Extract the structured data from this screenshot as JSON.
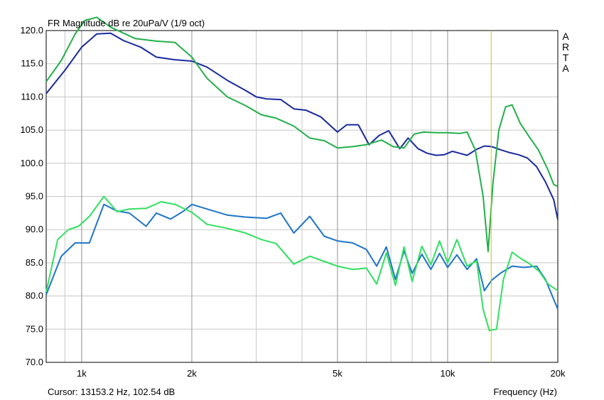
{
  "chart_data": {
    "type": "line",
    "title": "FR Magnitude dB re 20uPa/V (1/9 oct)",
    "watermark": "ARTA",
    "xlabel": "Frequency (Hz)",
    "cursor_text": "Cursor: 13153.2 Hz, 102.54 dB",
    "x_scale": "log",
    "xlim": [
      800,
      20000
    ],
    "ylim": [
      70,
      120
    ],
    "x_ticks": [
      {
        "value": 1000,
        "label": "1k"
      },
      {
        "value": 2000,
        "label": "2k"
      },
      {
        "value": 5000,
        "label": "5k"
      },
      {
        "value": 10000,
        "label": "10k"
      },
      {
        "value": 20000,
        "label": "20k"
      }
    ],
    "y_ticks": [
      {
        "value": 70,
        "label": "70.0"
      },
      {
        "value": 75,
        "label": "75.0"
      },
      {
        "value": 80,
        "label": "80.0"
      },
      {
        "value": 85,
        "label": "85.0"
      },
      {
        "value": 90,
        "label": "90.0"
      },
      {
        "value": 95,
        "label": "95.0"
      },
      {
        "value": 100,
        "label": "100.0"
      },
      {
        "value": 105,
        "label": "105.0"
      },
      {
        "value": 110,
        "label": "110.0"
      },
      {
        "value": 115,
        "label": "115.0"
      },
      {
        "value": 120,
        "label": "120.0"
      }
    ],
    "cursor_x": 13153.2,
    "grid": true,
    "colors": {
      "series_1": "#1a2a9c",
      "series_2": "#22b04a",
      "series_3": "#1f74c8",
      "series_4": "#30e060",
      "cursor": "#d4c400",
      "grid": "#c8c8c8"
    },
    "series": [
      {
        "color": "#1a2a9c",
        "x": [
          800,
          900,
          1000,
          1100,
          1200,
          1300,
          1450,
          1600,
          1800,
          2000,
          2200,
          2500,
          2800,
          3000,
          3200,
          3500,
          3800,
          4100,
          4500,
          5000,
          5300,
          5700,
          6100,
          6500,
          6900,
          7400,
          7800,
          8300,
          8800,
          9300,
          9800,
          10300,
          10800,
          11300,
          12000,
          12600,
          13200,
          14000,
          14800,
          15600,
          16500,
          17500,
          18500,
          19500,
          20000
        ],
        "y": [
          110.5,
          114,
          117.5,
          119.5,
          119.6,
          118.5,
          117.5,
          116,
          115.6,
          115.4,
          114.5,
          112.5,
          111,
          110,
          109.7,
          109.6,
          108.2,
          108,
          107,
          104.7,
          105.8,
          105.8,
          102.8,
          104.2,
          104.9,
          102.2,
          103.8,
          102.2,
          101.5,
          101.2,
          101.3,
          101.8,
          101.5,
          101.2,
          102.1,
          102.6,
          102.5,
          102,
          101.6,
          101.3,
          100.8,
          99.5,
          97.2,
          94.5,
          91.5
        ]
      },
      {
        "color": "#22b04a",
        "x": [
          800,
          880,
          960,
          1020,
          1100,
          1200,
          1400,
          1600,
          1800,
          2000,
          2200,
          2500,
          2800,
          3100,
          3400,
          3800,
          4200,
          4600,
          5000,
          5500,
          6000,
          6600,
          7100,
          7600,
          8100,
          8600,
          9300,
          10000,
          10800,
          11300,
          11900,
          12500,
          12900,
          13300,
          13800,
          14400,
          15000,
          15800,
          16700,
          17700,
          18800,
          19500,
          20000
        ],
        "y": [
          112.3,
          115.5,
          119.5,
          121.5,
          122,
          120.5,
          118.8,
          118.4,
          118.2,
          116,
          112.8,
          110,
          108.7,
          107.3,
          106.8,
          105.6,
          103.8,
          103.4,
          102.3,
          102.5,
          102.8,
          103.5,
          102.5,
          102.3,
          104.4,
          104.7,
          104.6,
          104.6,
          104.5,
          104.7,
          102,
          95,
          86.7,
          97,
          105,
          108.5,
          108.8,
          106,
          104,
          102,
          99,
          96.8,
          96.5
        ]
      },
      {
        "color": "#1f74c8",
        "x": [
          800,
          880,
          960,
          1050,
          1150,
          1250,
          1350,
          1500,
          1600,
          1750,
          1900,
          2000,
          2200,
          2500,
          2800,
          3200,
          3500,
          3800,
          4200,
          4600,
          5000,
          5500,
          6000,
          6400,
          6800,
          7200,
          7600,
          8000,
          8500,
          9000,
          9500,
          10000,
          10600,
          11300,
          12000,
          12600,
          13200,
          14000,
          15000,
          16200,
          17500,
          18500,
          20000
        ],
        "y": [
          80.2,
          86,
          88,
          88,
          93.8,
          92.8,
          92.5,
          90.5,
          92.5,
          91.6,
          92.8,
          93.8,
          93.1,
          92.2,
          91.9,
          91.7,
          92.5,
          89.5,
          92,
          89,
          88.3,
          88,
          87,
          84.5,
          87.4,
          82.5,
          86.8,
          83.4,
          86.3,
          84,
          86.4,
          84.3,
          86.2,
          84,
          85.6,
          80.8,
          82.4,
          83.5,
          84.5,
          84.3,
          84.5,
          82.5,
          78
        ]
      },
      {
        "color": "#30e060",
        "x": [
          800,
          860,
          920,
          980,
          1050,
          1150,
          1250,
          1350,
          1500,
          1650,
          1800,
          2000,
          2200,
          2500,
          2800,
          3100,
          3400,
          3800,
          4200,
          4600,
          5000,
          5500,
          6000,
          6400,
          6800,
          7200,
          7600,
          8000,
          8500,
          9000,
          9500,
          10000,
          10600,
          11300,
          12000,
          12500,
          13000,
          13600,
          14200,
          15000,
          15800,
          16800,
          17800,
          18800,
          20000
        ],
        "y": [
          80.6,
          88.5,
          90,
          90.5,
          92,
          95,
          92.7,
          93.1,
          93.2,
          94.2,
          93.8,
          92.6,
          90.8,
          90.2,
          89.5,
          88.5,
          87.9,
          84.8,
          86,
          85.2,
          84.5,
          84,
          84.2,
          81.8,
          86.5,
          81.6,
          87.4,
          82.2,
          87.5,
          84.7,
          88.3,
          85,
          88.5,
          84.5,
          85.3,
          78,
          74.8,
          75,
          82.5,
          86.6,
          85.7,
          84.8,
          83.7,
          81.8,
          80.8
        ]
      }
    ]
  }
}
